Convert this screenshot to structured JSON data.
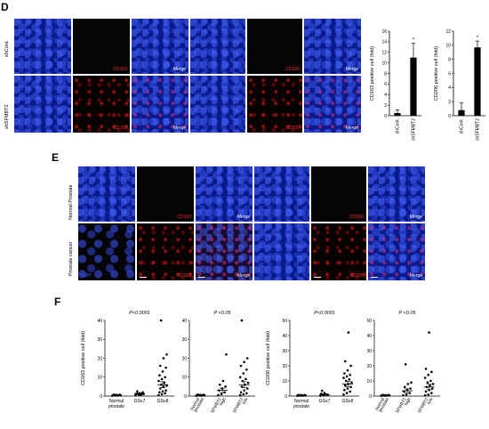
{
  "panels": {
    "D": {
      "label": "D",
      "rows": [
        "shCont.",
        "shSFMBT2"
      ],
      "channel_tags": {
        "cd163": "CD163",
        "cd206": "CD206",
        "merge": "Merge"
      }
    },
    "E": {
      "label": "E",
      "rows": [
        "Normal Prostate",
        "Prostate cancer"
      ],
      "channel_tags": {
        "cd163": "CD163",
        "cd206": "CD206",
        "merge": "Merge",
        "dapi": "DAPI"
      }
    },
    "F": {
      "label": "F"
    }
  },
  "chart_data": [
    {
      "type": "bar",
      "panel": "D",
      "ylabel": "CD163 positive cell (fold)",
      "categories": [
        "shCont.",
        "shSFMBT2"
      ],
      "values": [
        0.5,
        11
      ],
      "errors": [
        0.6,
        2.7
      ],
      "ylim": [
        0,
        16
      ],
      "yticks": [
        0,
        2,
        4,
        6,
        8,
        10,
        12,
        14,
        16
      ],
      "annotations": [
        "*"
      ],
      "grid": false
    },
    {
      "type": "bar",
      "panel": "D",
      "ylabel": "CD206 positive cell (fold)",
      "categories": [
        "shCont.",
        "shSFMBT2"
      ],
      "values": [
        0.8,
        9.7
      ],
      "errors": [
        1.0,
        0.9
      ],
      "ylim": [
        0,
        12
      ],
      "yticks": [
        0,
        2,
        4,
        6,
        8,
        10,
        12
      ],
      "annotations": [
        "*"
      ],
      "grid": false
    },
    {
      "type": "scatter",
      "panel": "F",
      "title": "P<0.0001",
      "ylabel": "CD163 positive cell (fold)",
      "categories": [
        "Normal prostate",
        "GS≤7",
        "GS≥8"
      ],
      "ylim": [
        0,
        40
      ],
      "yticks": [
        0,
        10,
        20,
        30,
        40
      ],
      "means": [
        0.5,
        1.3,
        6
      ],
      "sems": [
        0.2,
        0.4,
        1.6
      ],
      "points": [
        [
          0.2,
          0.3,
          0.4,
          0.5,
          0.6,
          0.7,
          0.8,
          0.3,
          0.5
        ],
        [
          0.5,
          0.8,
          1.0,
          1.2,
          1.5,
          2.0,
          2.5,
          0.6,
          1.1
        ],
        [
          0.5,
          1,
          1.5,
          2,
          2.5,
          3,
          4,
          5,
          5.5,
          6,
          7,
          8,
          9,
          10,
          11,
          13,
          15,
          16,
          20,
          22,
          40
        ]
      ]
    },
    {
      "type": "scatter",
      "panel": "F",
      "title": "P <0.05",
      "ylabel": "",
      "categories": [
        "Normal prostate",
        "SFMBT2 high",
        "SFMBT2 low"
      ],
      "ylim": [
        0,
        40
      ],
      "yticks": [
        0,
        10,
        20,
        30,
        40
      ],
      "means": [
        0.5,
        3,
        6
      ],
      "sems": [
        0.2,
        1.2,
        1.6
      ],
      "points": [
        [
          0.2,
          0.3,
          0.4,
          0.5,
          0.6,
          0.7,
          0.8,
          0.3,
          0.5
        ],
        [
          0.5,
          1,
          2,
          3,
          4,
          5,
          6,
          8,
          22
        ],
        [
          0.5,
          1,
          1.5,
          2,
          3,
          4,
          5,
          6,
          7,
          8,
          9,
          10,
          12,
          14,
          16,
          18,
          20,
          40
        ]
      ]
    },
    {
      "type": "scatter",
      "panel": "F",
      "title": "P<0.0001",
      "ylabel": "CD206 positive cell (fold)",
      "categories": [
        "Normal prostate",
        "GS≤7",
        "GS≥8"
      ],
      "ylim": [
        0,
        50
      ],
      "yticks": [
        0,
        10,
        20,
        30,
        40,
        50
      ],
      "means": [
        0.5,
        1.0,
        8
      ],
      "sems": [
        0.2,
        0.4,
        1.8
      ],
      "points": [
        [
          0.2,
          0.3,
          0.4,
          0.5,
          0.6,
          0.7,
          0.8,
          0.3,
          0.5
        ],
        [
          0.2,
          0.5,
          1.0,
          1.5,
          2.0,
          0.8,
          3.5
        ],
        [
          1,
          2,
          3,
          4,
          5,
          6,
          7,
          8,
          9,
          10,
          11,
          12,
          13,
          14,
          15,
          17,
          20,
          23,
          42
        ]
      ]
    },
    {
      "type": "scatter",
      "panel": "F",
      "title": "P <0.05",
      "ylabel": "",
      "categories": [
        "Normal prostate",
        "SFMBT2 high",
        "SFMBT2 low"
      ],
      "ylim": [
        0,
        50
      ],
      "yticks": [
        0,
        10,
        20,
        30,
        40,
        50
      ],
      "means": [
        0.5,
        3.5,
        6
      ],
      "sems": [
        0.2,
        1.3,
        1.8
      ],
      "points": [
        [
          0.2,
          0.3,
          0.4,
          0.5,
          0.6,
          0.7,
          0.8,
          0.3,
          0.5
        ],
        [
          0.5,
          1,
          2,
          3,
          4,
          5,
          6,
          8,
          9,
          21
        ],
        [
          0.5,
          1,
          2,
          3,
          4,
          5,
          6,
          7,
          8,
          9,
          10,
          12,
          14,
          16,
          18,
          42
        ]
      ]
    }
  ]
}
